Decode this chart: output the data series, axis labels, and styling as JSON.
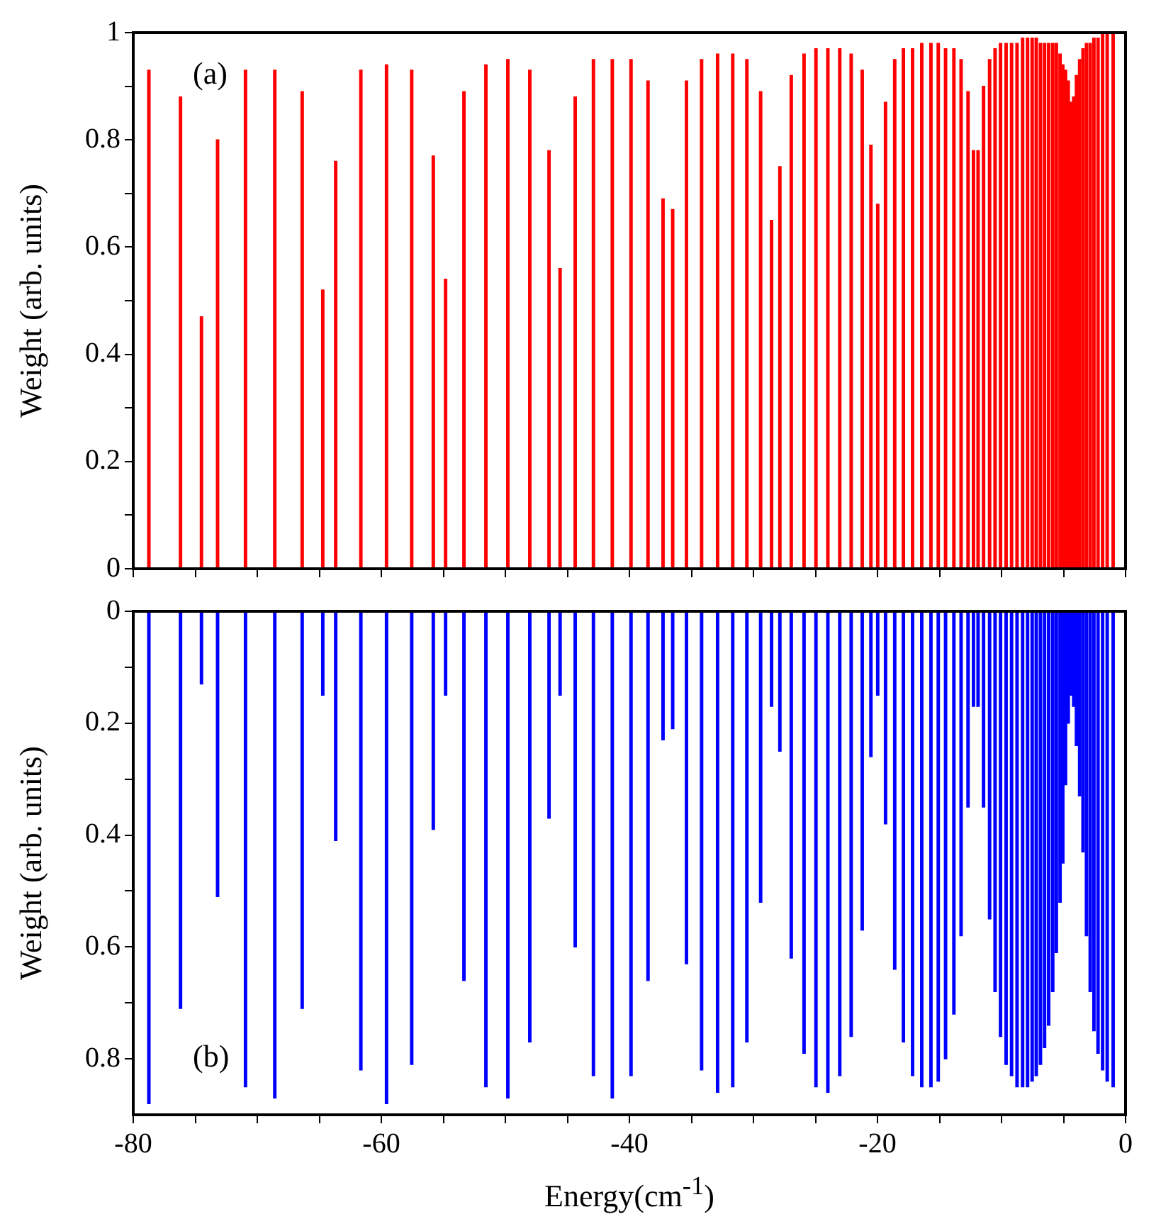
{
  "chart_data": [
    {
      "type": "bar",
      "color": "#ff0000",
      "ylabel": "Weight (arb. units)",
      "annotations": [
        "(a)"
      ],
      "tick_labels": "y",
      "xlim": [
        -80,
        0
      ],
      "xticks": [
        -80,
        {
          "value": -75,
          "label": null
        },
        -60,
        {
          "value": -70,
          "label": null
        },
        {
          "value": -65,
          "label": null
        },
        {
          "value": -55,
          "label": null
        },
        {
          "value": -50,
          "label": null
        },
        {
          "value": -45,
          "label": null
        },
        -40,
        {
          "value": -35,
          "label": null
        },
        {
          "value": -30,
          "label": null
        },
        {
          "value": -25,
          "label": null
        },
        -20,
        {
          "value": -15,
          "label": null
        },
        {
          "value": -10,
          "label": null
        },
        {
          "value": -5,
          "label": null
        },
        0
      ],
      "ylim": [
        0,
        1
      ],
      "yticks": [
        0,
        {
          "value": 0.1,
          "label": null
        },
        0.2,
        {
          "value": 0.3,
          "label": null
        },
        0.4,
        {
          "value": 0.5,
          "label": null
        },
        0.6,
        {
          "value": 0.7,
          "label": null
        },
        0.8,
        {
          "value": 0.9,
          "label": null
        },
        1
      ],
      "x": [
        -78.74,
        -76.19,
        -74.5,
        -73.2,
        -70.95,
        -68.59,
        -66.38,
        -64.72,
        -63.68,
        -61.65,
        -59.58,
        -57.55,
        -55.81,
        -54.82,
        -53.34,
        -51.57,
        -49.8,
        -48.03,
        -46.48,
        -45.59,
        -44.37,
        -42.9,
        -41.38,
        -39.87,
        -38.5,
        -37.29,
        -36.51,
        -35.4,
        -34.18,
        -32.89,
        -31.67,
        -30.53,
        -29.42,
        -28.54,
        -27.87,
        -26.95,
        -25.92,
        -24.96,
        -24.0,
        -23.04,
        -22.12,
        -21.23,
        -20.53,
        -19.98,
        -19.35,
        -18.61,
        -17.91,
        -17.17,
        -16.43,
        -15.69,
        -15.1,
        -14.51,
        -13.84,
        -13.26,
        -12.7,
        -12.26,
        -11.89,
        -11.45,
        -10.96,
        -10.52,
        -10.08,
        -9.63,
        -9.19,
        -8.75,
        -8.3,
        -7.9,
        -7.53,
        -7.2,
        -6.86,
        -6.53,
        -6.2,
        -5.87,
        -5.58,
        -5.28,
        -5.06,
        -4.84,
        -4.62,
        -4.4,
        -4.18,
        -3.96,
        -3.7,
        -3.43,
        -3.15,
        -2.85,
        -2.55,
        -2.22,
        -1.85,
        -1.48,
        -1.0
      ],
      "values": [
        0.93,
        0.88,
        0.47,
        0.8,
        0.93,
        0.93,
        0.89,
        0.52,
        0.76,
        0.93,
        0.94,
        0.93,
        0.77,
        0.54,
        0.89,
        0.94,
        0.95,
        0.93,
        0.78,
        0.56,
        0.88,
        0.95,
        0.95,
        0.95,
        0.91,
        0.69,
        0.67,
        0.91,
        0.95,
        0.96,
        0.96,
        0.95,
        0.89,
        0.65,
        0.75,
        0.92,
        0.96,
        0.97,
        0.97,
        0.97,
        0.96,
        0.93,
        0.79,
        0.68,
        0.87,
        0.95,
        0.97,
        0.97,
        0.98,
        0.98,
        0.98,
        0.97,
        0.97,
        0.95,
        0.89,
        0.78,
        0.78,
        0.9,
        0.95,
        0.97,
        0.98,
        0.98,
        0.98,
        0.98,
        0.99,
        0.99,
        0.99,
        0.99,
        0.98,
        0.98,
        0.98,
        0.98,
        0.98,
        0.96,
        0.94,
        0.93,
        0.91,
        0.87,
        0.88,
        0.92,
        0.95,
        0.97,
        0.98,
        0.98,
        0.99,
        0.99,
        1.0,
        1.0,
        1.0
      ]
    },
    {
      "type": "bar",
      "color": "#0000ff",
      "ylabel": "Weight (arb. units)",
      "xlabel": "Energy(cm$^{-1}$)",
      "annotations": [
        "(b)"
      ],
      "xlim": [
        -80,
        0
      ],
      "xticks": [
        -80,
        {
          "value": -75,
          "label": null
        },
        {
          "value": -70,
          "label": null
        },
        {
          "value": -65,
          "label": null
        },
        -60,
        {
          "value": -55,
          "label": null
        },
        {
          "value": -50,
          "label": null
        },
        {
          "value": -45,
          "label": null
        },
        -40,
        {
          "value": -35,
          "label": null
        },
        {
          "value": -30,
          "label": null
        },
        {
          "value": -25,
          "label": null
        },
        -20,
        {
          "value": -15,
          "label": null
        },
        {
          "value": -10,
          "label": null
        },
        {
          "value": -5,
          "label": null
        },
        0
      ],
      "ylim": [
        0.9,
        0
      ],
      "yticks": [
        0,
        {
          "value": 0.1,
          "label": null
        },
        0.2,
        {
          "value": 0.3,
          "label": null
        },
        0.4,
        {
          "value": 0.5,
          "label": null
        },
        0.6,
        {
          "value": 0.7,
          "label": null
        },
        0.8
      ],
      "x": [
        -78.74,
        -76.19,
        -74.5,
        -73.2,
        -70.95,
        -68.59,
        -66.38,
        -64.72,
        -63.68,
        -61.65,
        -59.58,
        -57.55,
        -55.81,
        -54.82,
        -53.34,
        -51.57,
        -49.8,
        -48.03,
        -46.48,
        -45.59,
        -44.37,
        -42.9,
        -41.38,
        -39.87,
        -38.5,
        -37.29,
        -36.51,
        -35.4,
        -34.18,
        -32.89,
        -31.67,
        -30.53,
        -29.42,
        -28.54,
        -27.87,
        -26.95,
        -25.92,
        -24.96,
        -24.0,
        -23.04,
        -22.12,
        -21.23,
        -20.53,
        -19.98,
        -19.35,
        -18.61,
        -17.91,
        -17.17,
        -16.43,
        -15.69,
        -15.1,
        -14.51,
        -13.84,
        -13.26,
        -12.7,
        -12.26,
        -11.89,
        -11.45,
        -10.96,
        -10.52,
        -10.08,
        -9.63,
        -9.19,
        -8.75,
        -8.3,
        -7.9,
        -7.53,
        -7.2,
        -6.86,
        -6.53,
        -6.2,
        -5.87,
        -5.58,
        -5.28,
        -5.06,
        -4.84,
        -4.62,
        -4.4,
        -4.18,
        -3.96,
        -3.7,
        -3.43,
        -3.15,
        -2.85,
        -2.55,
        -2.22,
        -1.85,
        -1.48,
        -1.0
      ],
      "values": [
        0.88,
        0.71,
        0.13,
        0.51,
        0.85,
        0.87,
        0.71,
        0.15,
        0.41,
        0.82,
        0.88,
        0.81,
        0.39,
        0.15,
        0.66,
        0.85,
        0.87,
        0.77,
        0.37,
        0.15,
        0.6,
        0.83,
        0.87,
        0.83,
        0.66,
        0.23,
        0.21,
        0.63,
        0.82,
        0.86,
        0.85,
        0.77,
        0.52,
        0.17,
        0.25,
        0.62,
        0.79,
        0.85,
        0.86,
        0.83,
        0.76,
        0.57,
        0.26,
        0.15,
        0.38,
        0.64,
        0.77,
        0.83,
        0.85,
        0.85,
        0.84,
        0.8,
        0.72,
        0.58,
        0.35,
        0.17,
        0.17,
        0.35,
        0.55,
        0.68,
        0.76,
        0.81,
        0.83,
        0.85,
        0.85,
        0.85,
        0.84,
        0.83,
        0.81,
        0.78,
        0.74,
        0.68,
        0.61,
        0.52,
        0.45,
        0.31,
        0.2,
        0.15,
        0.17,
        0.24,
        0.33,
        0.43,
        0.58,
        0.68,
        0.75,
        0.79,
        0.82,
        0.84,
        0.85
      ]
    }
  ]
}
